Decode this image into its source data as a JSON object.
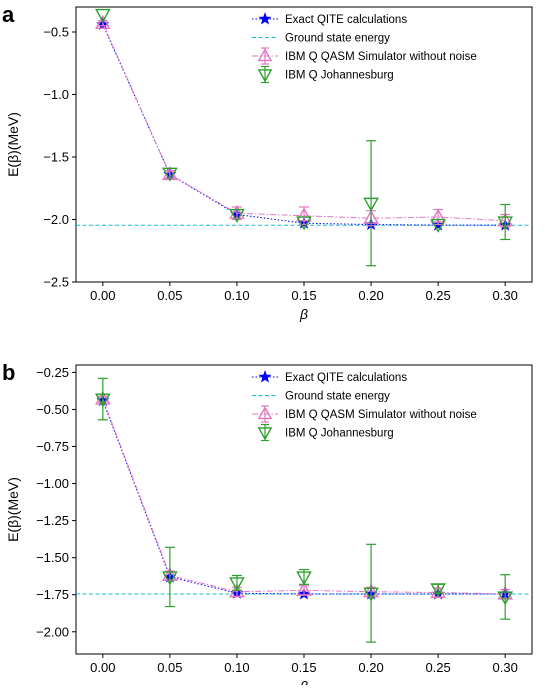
{
  "chart_data": [
    {
      "panel_label": "a",
      "type": "line",
      "xlabel": "β",
      "ylabel": "E(β)(MeV)",
      "xlim": [
        -0.02,
        0.32
      ],
      "ylim": [
        -2.5,
        -0.3
      ],
      "xticks": [
        0.0,
        0.05,
        0.1,
        0.15,
        0.2,
        0.25,
        0.3
      ],
      "xtick_labels": [
        "0.00",
        "0.05",
        "0.10",
        "0.15",
        "0.20",
        "0.25",
        "0.30"
      ],
      "yticks": [
        -0.5,
        -1.0,
        -1.5,
        -2.0,
        -2.5
      ],
      "ytick_labels": [
        "−0.5",
        "−1.0",
        "−1.5",
        "−2.0",
        "−2.5"
      ],
      "ground_state": -2.046,
      "legend_position": "top-right",
      "series": [
        {
          "name": "Exact QITE calculations",
          "color": "#0000ff",
          "style": "dotted",
          "marker": "star",
          "x": [
            0.0,
            0.05,
            0.1,
            0.15,
            0.2,
            0.25,
            0.3
          ],
          "y": [
            -0.44,
            -1.64,
            -1.96,
            -2.03,
            -2.04,
            -2.045,
            -2.045
          ]
        },
        {
          "name": "IBM Q QASM Simulator without noise",
          "color": "#e377c2",
          "style": "dashdot",
          "marker": "triangle-up",
          "x": [
            0.0,
            0.05,
            0.1,
            0.15,
            0.2,
            0.25,
            0.3
          ],
          "y": [
            -0.43,
            -1.64,
            -1.95,
            -1.97,
            -1.99,
            -1.98,
            -2.01
          ],
          "err": [
            0.02,
            0.03,
            0.05,
            0.07,
            0.06,
            0.06,
            0.05
          ]
        },
        {
          "name": "IBM Q Johannesburg",
          "color": "#2ca02c",
          "style": "none",
          "marker": "triangle-down",
          "x": [
            0.0,
            0.05,
            0.1,
            0.15,
            0.2,
            0.25,
            0.3
          ],
          "y": [
            -0.36,
            -1.63,
            -1.96,
            -2.02,
            -1.87,
            -2.04,
            -2.02
          ],
          "err": [
            0.0,
            0.0,
            0.0,
            0.0,
            0.5,
            0.0,
            0.14
          ]
        }
      ],
      "ground_state_label": "Ground state energy",
      "ground_state_color": "#17becf"
    },
    {
      "panel_label": "b",
      "type": "line",
      "xlabel": "β",
      "ylabel": "E(β)(MeV)",
      "xlim": [
        -0.02,
        0.32
      ],
      "ylim": [
        -2.15,
        -0.2
      ],
      "xticks": [
        0.0,
        0.05,
        0.1,
        0.15,
        0.2,
        0.25,
        0.3
      ],
      "xtick_labels": [
        "0.00",
        "0.05",
        "0.10",
        "0.15",
        "0.20",
        "0.25",
        "0.30"
      ],
      "yticks": [
        -0.25,
        -0.5,
        -0.75,
        -1.0,
        -1.25,
        -1.5,
        -1.75,
        -2.0
      ],
      "ytick_labels": [
        "−0.25",
        "−0.50",
        "−0.75",
        "−1.00",
        "−1.25",
        "−1.50",
        "−1.75",
        "−2.00"
      ],
      "ground_state": -1.745,
      "legend_position": "top-right",
      "series": [
        {
          "name": "Exact QITE calculations",
          "color": "#0000ff",
          "style": "dotted",
          "marker": "star",
          "x": [
            0.0,
            0.05,
            0.1,
            0.15,
            0.2,
            0.25,
            0.3
          ],
          "y": [
            -0.44,
            -1.63,
            -1.74,
            -1.745,
            -1.745,
            -1.745,
            -1.745
          ]
        },
        {
          "name": "IBM Q QASM Simulator without noise",
          "color": "#e377c2",
          "style": "dashdot",
          "marker": "triangle-up",
          "x": [
            0.0,
            0.05,
            0.1,
            0.15,
            0.2,
            0.25,
            0.3
          ],
          "y": [
            -0.43,
            -1.62,
            -1.73,
            -1.72,
            -1.73,
            -1.735,
            -1.745
          ],
          "err": [
            0.02,
            0.03,
            0.03,
            0.03,
            0.03,
            0.03,
            0.03
          ]
        },
        {
          "name": "IBM Q Johannesburg",
          "color": "#2ca02c",
          "style": "none",
          "marker": "triangle-down",
          "x": [
            0.0,
            0.05,
            0.1,
            0.15,
            0.2,
            0.25,
            0.3
          ],
          "y": [
            -0.43,
            -1.63,
            -1.67,
            -1.63,
            -1.74,
            -1.71,
            -1.765
          ],
          "err": [
            0.14,
            0.2,
            0.05,
            0.05,
            0.33,
            0.03,
            0.15
          ]
        }
      ],
      "ground_state_label": "Ground state energy",
      "ground_state_color": "#17becf"
    }
  ]
}
